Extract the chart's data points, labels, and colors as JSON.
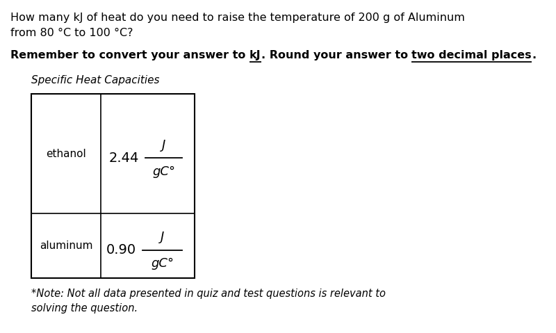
{
  "title_line1": "How many kJ of heat do you need to raise the temperature of 200 g of Aluminum",
  "title_line2": "from 80 °C to 100 °C?",
  "reminder_pre": "Remember to convert your answer to ",
  "reminder_kJ": "kJ",
  "reminder_mid": ". Round your answer to ",
  "reminder_two": "two decimal places",
  "reminder_end": ".",
  "table_title": "Specific Heat Capacities",
  "row1_substance": "ethanol",
  "row1_value": "2.44",
  "row2_substance": "aluminum",
  "row2_value": "0.90",
  "unit_num": "J",
  "unit_den": "gC°",
  "note": "*Note: Not all data presented in quiz and test questions is relevant to\nsolving the question.",
  "bg_color": "#ffffff",
  "text_color": "#000000"
}
